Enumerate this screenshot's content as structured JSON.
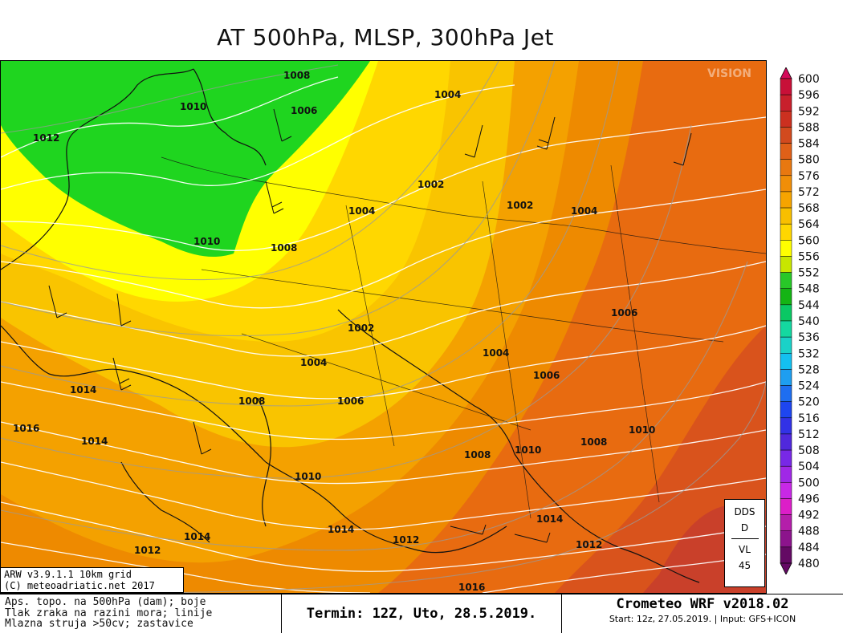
{
  "title": "AT 500hPa, MLSP, 300hPa Jet",
  "watermark": "VISION",
  "colors": {
    "green": "#1fd51f",
    "yellow": "#ffff00",
    "c560": "#ffd700",
    "c564": "#f9c400",
    "c568": "#f4a100",
    "c572": "#ee8a00",
    "c576": "#e86b10",
    "c580": "#d9531c",
    "c584": "#c9402a"
  },
  "legend": {
    "values": [
      "600",
      "596",
      "592",
      "588",
      "584",
      "580",
      "576",
      "572",
      "568",
      "564",
      "560",
      "556",
      "552",
      "548",
      "544",
      "540",
      "536",
      "532",
      "528",
      "524",
      "520",
      "516",
      "512",
      "508",
      "504",
      "500",
      "496",
      "492",
      "488",
      "484",
      "480"
    ],
    "colors": [
      "#d40a5a",
      "#c81038",
      "#c8202c",
      "#cc3020",
      "#d24a1e",
      "#e06018",
      "#e87810",
      "#f08e08",
      "#f6a400",
      "#f8bf00",
      "#ffd700",
      "#ffff00",
      "#c8e600",
      "#28c828",
      "#14b414",
      "#0ac864",
      "#14d8a0",
      "#1ad2c8",
      "#14c0f0",
      "#1e9ef0",
      "#1e6ef0",
      "#1e46f0",
      "#3232e6",
      "#5028dc",
      "#7828e6",
      "#a028e6",
      "#c828e6",
      "#dc1ec8",
      "#b41eaa",
      "#8c148c",
      "#640a64"
    ]
  },
  "pressure_labels": [
    "1008",
    "1010",
    "1006",
    "1012",
    "1004",
    "1002",
    "1002",
    "1004",
    "1004",
    "1010",
    "1008",
    "1006",
    "1002",
    "1004",
    "1004",
    "1006",
    "1014",
    "1016",
    "1014",
    "1008",
    "1006",
    "1010",
    "1008",
    "1010",
    "1008",
    "1010",
    "1014",
    "1014",
    "1012",
    "1012",
    "1012",
    "1016",
    "1014"
  ],
  "info_box": {
    "line1": "ARW v3.9.1.1 10km grid",
    "line2": "(C) meteoadriatic.net 2017"
  },
  "dds_box": {
    "line1": "DDS",
    "line2": "D",
    "line3": "VL",
    "line4": "45"
  },
  "footer": {
    "left_line1": "Aps. topo. na 500hPa (dam); boje",
    "left_line2": "Tlak zraka na razini mora; linije",
    "left_line3": "Mlazna struja >50cv; zastavice",
    "termin": "Termin: 12Z, Uto, 28.5.2019.",
    "brand": "Crometeo WRF v2018.02",
    "start": "Start: 12z, 27.05.2019. | Input: GFS+ICON"
  }
}
